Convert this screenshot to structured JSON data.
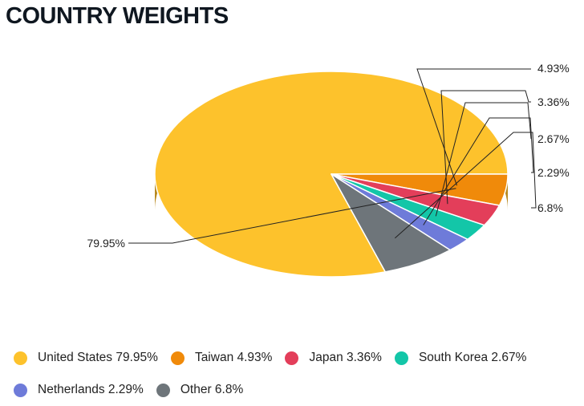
{
  "header": {
    "title": "COUNTRY WEIGHTS"
  },
  "chart_data": {
    "type": "pie",
    "title": "COUNTRY WEIGHTS",
    "slices": [
      {
        "label": "United States",
        "value": 79.95,
        "value_label": "79.95%",
        "legend_text": "United States 79.95%",
        "color": "#FDC22C",
        "side_color": "#B88A21"
      },
      {
        "label": "Taiwan",
        "value": 4.93,
        "value_label": "4.93%",
        "legend_text": "Taiwan 4.93%",
        "color": "#F08A0A",
        "side_color": "#A65F07"
      },
      {
        "label": "Japan",
        "value": 3.36,
        "value_label": "3.36%",
        "legend_text": "Japan 3.36%",
        "color": "#E33E5A",
        "side_color": "#9E2B3E"
      },
      {
        "label": "South Korea",
        "value": 2.67,
        "value_label": "2.67%",
        "legend_text": "South Korea 2.67%",
        "color": "#13C6A8",
        "side_color": "#0D8B76"
      },
      {
        "label": "Netherlands",
        "value": 2.29,
        "value_label": "2.29%",
        "legend_text": "Netherlands 2.29%",
        "color": "#6E7BD9",
        "side_color": "#4D5698"
      },
      {
        "label": "Other",
        "value": 6.8,
        "value_label": "6.8%",
        "legend_text": "Other 6.8%",
        "color": "#6E757A",
        "side_color": "#4D5256"
      }
    ],
    "legend_position": "bottom",
    "is_3d": true
  }
}
